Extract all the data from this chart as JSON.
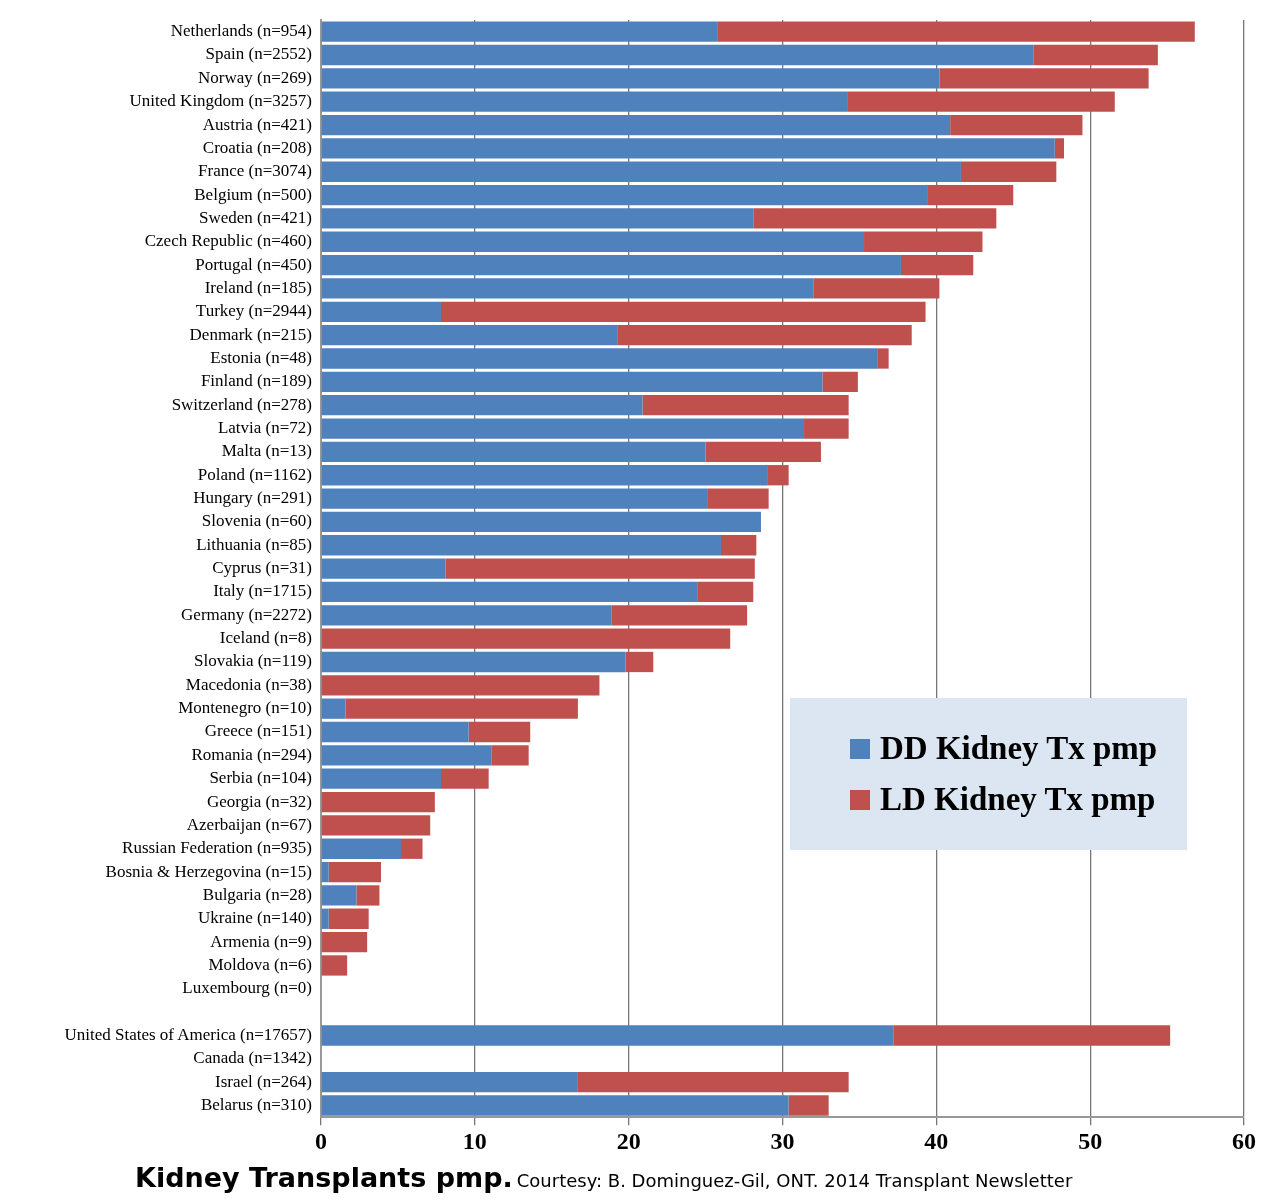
{
  "chart_data": {
    "type": "bar",
    "orientation": "horizontal",
    "stacked": true,
    "title": "Kidney Transplants pmp.",
    "annotations": [
      "Courtesy: B. Dominguez-Gil, ONT. 2014 Transplant Newsletter"
    ],
    "categories": [
      "Netherlands (n=954)",
      "Spain (n=2552)",
      "Norway (n=269)",
      "United Kingdom (n=3257)",
      "Austria (n=421)",
      "Croatia (n=208)",
      "France (n=3074)",
      "Belgium (n=500)",
      "Sweden (n=421)",
      "Czech Republic (n=460)",
      "Portugal (n=450)",
      "Ireland (n=185)",
      "Turkey (n=2944)",
      "Denmark (n=215)",
      "Estonia (n=48)",
      "Finland (n=189)",
      "Switzerland (n=278)",
      "Latvia (n=72)",
      "Malta (n=13)",
      "Poland (n=1162)",
      "Hungary (n=291)",
      "Slovenia (n=60)",
      "Lithuania (n=85)",
      "Cyprus (n=31)",
      "Italy (n=1715)",
      "Germany (n=2272)",
      "Iceland (n=8)",
      "Slovakia (n=119)",
      "Macedonia (n=38)",
      "Montenegro (n=10)",
      "Greece (n=151)",
      "Romania (n=294)",
      "Serbia (n=104)",
      "Georgia (n=32)",
      "Azerbaijan (n=67)",
      "Russian Federation (n=935)",
      "Bosnia & Herzegovina (n=15)",
      "Bulgaria (n=28)",
      "Ukraine (n=140)",
      "Armenia (n=9)",
      "Moldova (n=6)",
      "Luxembourg (n=0)",
      null,
      "United States of America (n=17657)",
      "Canada (n=1342)",
      "Israel (n=264)",
      "Belarus (n=310)"
    ],
    "series": [
      {
        "name": "DD Kidney Tx pmp",
        "color": "#4f81bd",
        "values": [
          25.8,
          46.3,
          40.2,
          34.2,
          40.9,
          47.7,
          41.6,
          39.4,
          28.1,
          35.3,
          37.7,
          32.0,
          7.8,
          19.3,
          36.2,
          32.6,
          20.9,
          31.4,
          25.0,
          29.0,
          25.1,
          28.6,
          26.0,
          8.1,
          24.5,
          18.9,
          0,
          19.8,
          0,
          1.6,
          9.6,
          11.1,
          7.8,
          0,
          0,
          5.2,
          0.5,
          2.3,
          0.5,
          0,
          0,
          0,
          null,
          37.2,
          0,
          16.7,
          30.4
        ]
      },
      {
        "name": "LD Kidney Tx pmp",
        "color": "#c0504d",
        "values": [
          31.0,
          8.1,
          13.6,
          17.4,
          8.6,
          0.6,
          6.2,
          5.6,
          15.8,
          7.7,
          4.7,
          8.2,
          31.5,
          19.1,
          0.7,
          2.3,
          13.4,
          2.9,
          7.5,
          1.4,
          4.0,
          0,
          2.3,
          20.1,
          3.6,
          8.8,
          26.6,
          1.8,
          18.1,
          15.1,
          4.0,
          2.4,
          3.1,
          7.4,
          7.1,
          1.4,
          3.4,
          1.5,
          2.6,
          3.0,
          1.7,
          0,
          null,
          18.0,
          0,
          17.6,
          2.6
        ]
      }
    ],
    "xlim": [
      0,
      60
    ],
    "xticks": [
      0,
      10,
      20,
      30,
      40,
      50,
      60
    ],
    "grid": "x",
    "legend": "right"
  }
}
